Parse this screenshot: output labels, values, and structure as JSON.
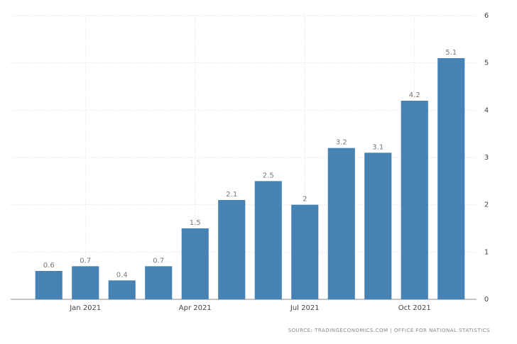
{
  "chart_data": {
    "type": "bar",
    "categories": [
      null,
      "Jan 2021",
      null,
      null,
      "Apr 2021",
      null,
      null,
      "Jul 2021",
      null,
      null,
      "Oct 2021",
      null
    ],
    "values": [
      0.6,
      0.7,
      0.4,
      0.7,
      1.5,
      2.1,
      2.5,
      2,
      3.2,
      3.1,
      4.2,
      5.1
    ],
    "color": "#4682b4",
    "ylim": [
      0,
      6
    ],
    "yticks": [
      0,
      1,
      2,
      3,
      4,
      5,
      6
    ],
    "grid": true,
    "y_axis_side": "right",
    "source": "SOURCE: TRADINGECONOMICS.COM | OFFICE FOR NATIONAL STATISTICS"
  }
}
